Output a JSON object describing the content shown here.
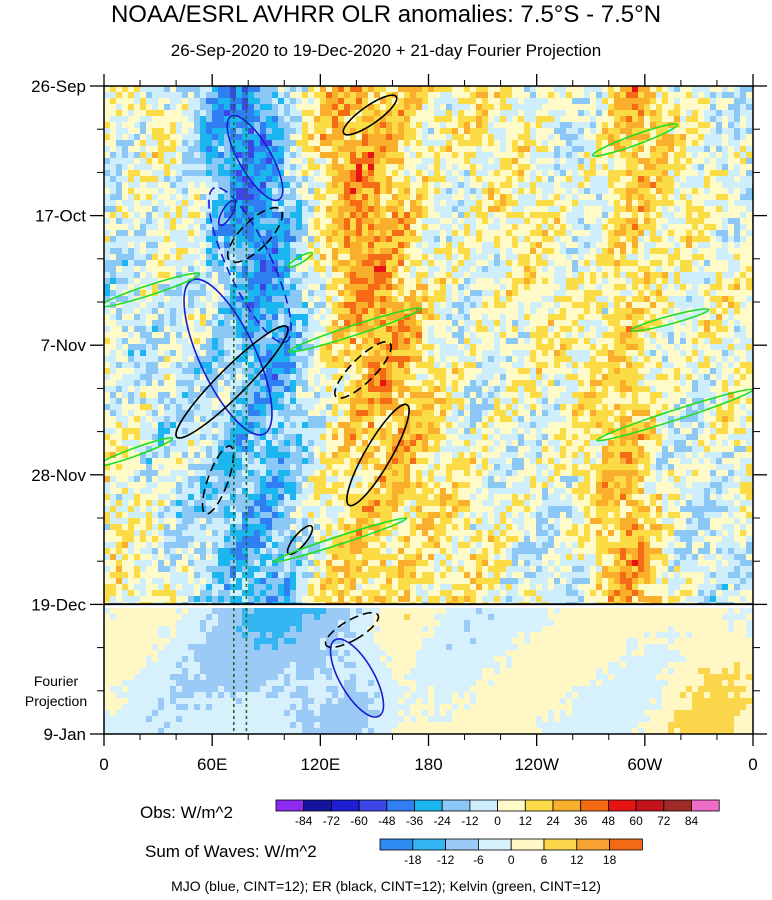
{
  "chart_data": {
    "type": "heatmap",
    "title": "NOAA/ESRL AVHRR OLR anomalies: 7.5°S - 7.5°N",
    "subtitle": "26-Sep-2020 to 19-Dec-2020 + 21-day Fourier Projection",
    "x_tick_labels": [
      "0",
      "60E",
      "120E",
      "180",
      "120W",
      "60W",
      "0"
    ],
    "x_ticks_deg_east": [
      0,
      60,
      120,
      180,
      240,
      300,
      360
    ],
    "y_tick_labels": [
      "26-Sep",
      "17-Oct",
      "7-Nov",
      "28-Nov",
      "19-Dec",
      "9-Jan"
    ],
    "y_ticks_dates": [
      "2020-09-26",
      "2020-10-17",
      "2020-11-07",
      "2020-11-28",
      "2020-12-19",
      "2021-01-09"
    ],
    "observation_end_date": "2020-12-19",
    "projection_label": "Fourier Projection",
    "reference_lines_lon_deg_east": [
      72,
      79
    ],
    "obs_colorbar": {
      "label": "Obs: W/m^2",
      "levels": [
        -84,
        -72,
        -60,
        -48,
        -36,
        -24,
        -12,
        0,
        12,
        24,
        36,
        48,
        60,
        72,
        84
      ],
      "colors": [
        "#8f2bf0",
        "#14149c",
        "#1e1ed2",
        "#3c46e6",
        "#2f7ff2",
        "#1bb6f0",
        "#8cc8f5",
        "#cdeefa",
        "#fffbc8",
        "#fcdc46",
        "#f9af2c",
        "#f56a14",
        "#e61414",
        "#c3141e",
        "#9e2a2a",
        "#ef6cc8"
      ]
    },
    "waves_colorbar": {
      "label": "Sum of Waves: W/m^2",
      "levels": [
        -18,
        -12,
        -6,
        0,
        6,
        12,
        18
      ],
      "colors": [
        "#2f8af2",
        "#34b6f2",
        "#9acaf5",
        "#d6f1fb",
        "#fff8c4",
        "#fcd64a",
        "#f8a232",
        "#f46a14"
      ]
    },
    "contours": [
      {
        "wave": "MJO",
        "color": "#1a1ad2",
        "cint": 12
      },
      {
        "wave": "ER",
        "color": "#000000",
        "cint": 12
      },
      {
        "wave": "Kelvin",
        "color": "#22dd22",
        "cint": 12
      }
    ]
  },
  "footer": "MJO (blue, CINT=12); ER (black, CINT=12); Kelvin (green, CINT=12)"
}
